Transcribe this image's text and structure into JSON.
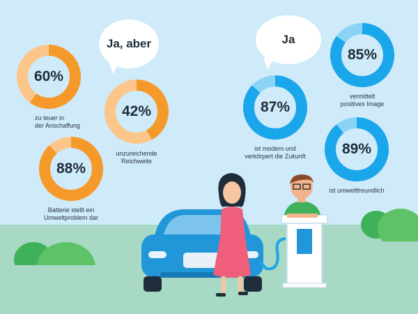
{
  "colors": {
    "sky": "#cfeaf8",
    "ground": "#a7d9c4",
    "orange": "#f59a2a",
    "orange_light": "#fcc68b",
    "blue": "#1aa6ea",
    "blue_light": "#8bd3f5",
    "car": "#2196d9",
    "bush_dark": "#3eb15a",
    "bush_light": "#5ec266"
  },
  "bubbles": {
    "left_text": "Ja, aber",
    "right_text": "Ja"
  },
  "chart_data": [
    {
      "type": "pie",
      "group": "Ja, aber",
      "items": [
        {
          "value": 60,
          "label": "60%",
          "caption": [
            "zu teuer in",
            "der Anschaffung"
          ]
        },
        {
          "value": 42,
          "label": "42%",
          "caption": [
            "unzureichende",
            "Reichweite"
          ]
        },
        {
          "value": 88,
          "label": "88%",
          "caption": [
            "Batterie stellt ein",
            "Umweltproblem dar"
          ]
        }
      ]
    },
    {
      "type": "pie",
      "group": "Ja",
      "items": [
        {
          "value": 87,
          "label": "87%",
          "caption": [
            "ist modern und",
            "verkörpert die Zukunft"
          ]
        },
        {
          "value": 85,
          "label": "85%",
          "caption": [
            "vermittelt",
            "positives Image"
          ]
        },
        {
          "value": 89,
          "label": "89%",
          "caption": [
            "ist umweltfreundlich"
          ]
        }
      ]
    }
  ]
}
